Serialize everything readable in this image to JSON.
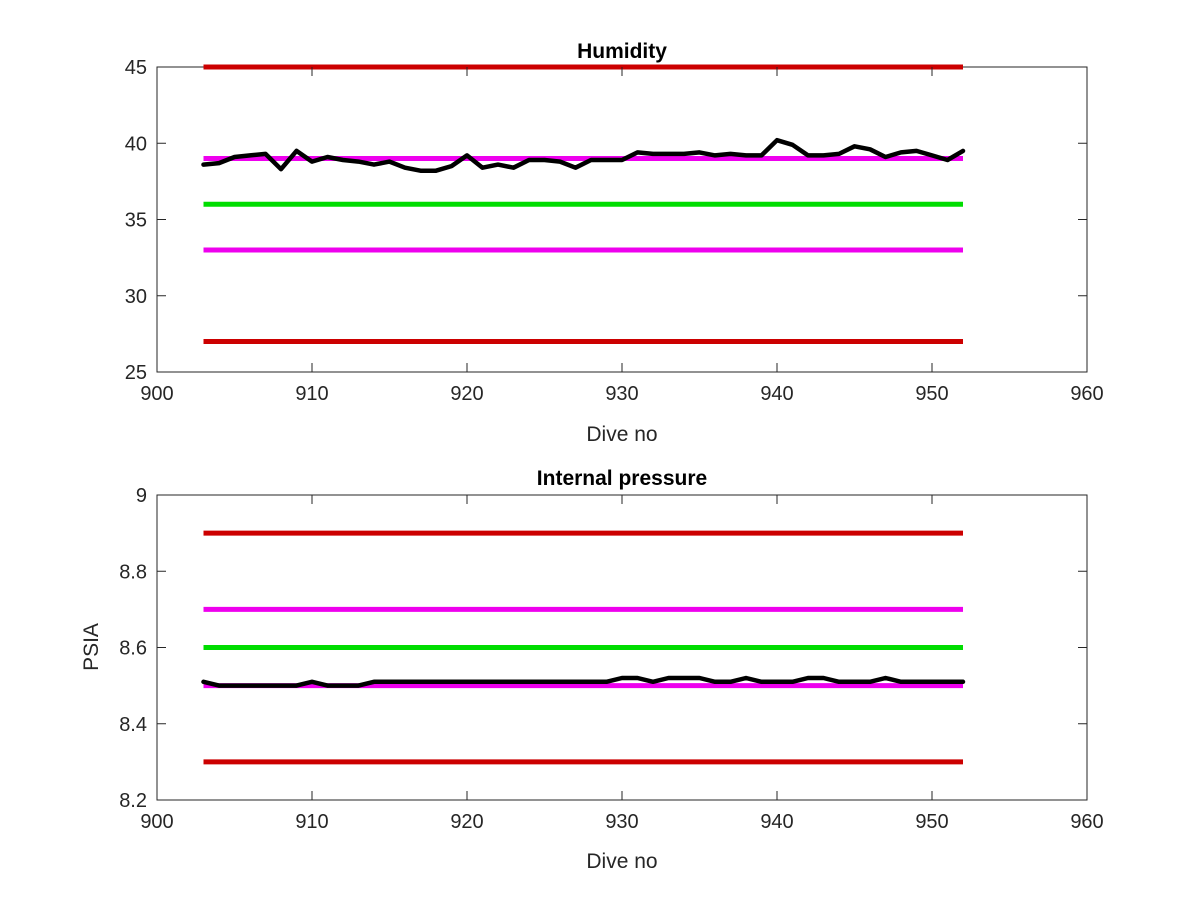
{
  "chart_data": [
    {
      "type": "line",
      "title": "Humidity",
      "xlabel": "Dive no",
      "ylabel": "",
      "xlim": [
        900,
        960
      ],
      "ylim": [
        25,
        45
      ],
      "xticks": [
        "900",
        "910",
        "920",
        "930",
        "940",
        "950",
        "960"
      ],
      "yticks": [
        "25",
        "30",
        "35",
        "40",
        "45"
      ],
      "grid": false,
      "reference_lines": [
        {
          "y": 45,
          "x_range": [
            903,
            952
          ],
          "color": "#cc0000"
        },
        {
          "y": 39,
          "x_range": [
            903,
            952
          ],
          "color": "#ee00ee"
        },
        {
          "y": 36,
          "x_range": [
            903,
            952
          ],
          "color": "#00dd00"
        },
        {
          "y": 33,
          "x_range": [
            903,
            952
          ],
          "color": "#ee00ee"
        },
        {
          "y": 27,
          "x_range": [
            903,
            952
          ],
          "color": "#cc0000"
        }
      ],
      "series": [
        {
          "color": "#000000",
          "x": [
            903,
            904,
            905,
            906,
            907,
            908,
            909,
            910,
            911,
            912,
            913,
            914,
            915,
            916,
            917,
            918,
            919,
            920,
            921,
            922,
            923,
            924,
            925,
            926,
            927,
            928,
            929,
            930,
            931,
            932,
            933,
            934,
            935,
            936,
            937,
            938,
            939,
            940,
            941,
            942,
            943,
            944,
            945,
            946,
            947,
            948,
            949,
            950,
            951,
            952
          ],
          "values": [
            38.6,
            38.7,
            39.1,
            39.2,
            39.3,
            38.3,
            39.5,
            38.8,
            39.1,
            38.9,
            38.8,
            38.6,
            38.8,
            38.4,
            38.2,
            38.2,
            38.5,
            39.2,
            38.4,
            38.6,
            38.4,
            38.9,
            38.9,
            38.8,
            38.4,
            38.9,
            38.9,
            38.9,
            39.4,
            39.3,
            39.3,
            39.3,
            39.4,
            39.2,
            39.3,
            39.2,
            39.2,
            40.2,
            39.9,
            39.2,
            39.2,
            39.3,
            39.8,
            39.6,
            39.1,
            39.4,
            39.5,
            39.2,
            38.9,
            39.5
          ]
        }
      ]
    },
    {
      "type": "line",
      "title": "Internal pressure",
      "xlabel": "Dive no",
      "ylabel": "PSIA",
      "xlim": [
        900,
        960
      ],
      "ylim": [
        8.2,
        9
      ],
      "xticks": [
        "900",
        "910",
        "920",
        "930",
        "940",
        "950",
        "960"
      ],
      "yticks": [
        "8.2",
        "8.4",
        "8.6",
        "8.8",
        "9"
      ],
      "grid": false,
      "reference_lines": [
        {
          "y": 8.9,
          "x_range": [
            903,
            952
          ],
          "color": "#cc0000"
        },
        {
          "y": 8.7,
          "x_range": [
            903,
            952
          ],
          "color": "#ee00ee"
        },
        {
          "y": 8.6,
          "x_range": [
            903,
            952
          ],
          "color": "#00dd00"
        },
        {
          "y": 8.5,
          "x_range": [
            903,
            952
          ],
          "color": "#ee00ee"
        },
        {
          "y": 8.3,
          "x_range": [
            903,
            952
          ],
          "color": "#cc0000"
        }
      ],
      "series": [
        {
          "color": "#000000",
          "x": [
            903,
            904,
            905,
            906,
            907,
            908,
            909,
            910,
            911,
            912,
            913,
            914,
            915,
            916,
            917,
            918,
            919,
            920,
            921,
            922,
            923,
            924,
            925,
            926,
            927,
            928,
            929,
            930,
            931,
            932,
            933,
            934,
            935,
            936,
            937,
            938,
            939,
            940,
            941,
            942,
            943,
            944,
            945,
            946,
            947,
            948,
            949,
            950,
            951,
            952
          ],
          "values": [
            8.51,
            8.5,
            8.5,
            8.5,
            8.5,
            8.5,
            8.5,
            8.51,
            8.5,
            8.5,
            8.5,
            8.51,
            8.51,
            8.51,
            8.51,
            8.51,
            8.51,
            8.51,
            8.51,
            8.51,
            8.51,
            8.51,
            8.51,
            8.51,
            8.51,
            8.51,
            8.51,
            8.52,
            8.52,
            8.51,
            8.52,
            8.52,
            8.52,
            8.51,
            8.51,
            8.52,
            8.51,
            8.51,
            8.51,
            8.52,
            8.52,
            8.51,
            8.51,
            8.51,
            8.52,
            8.51,
            8.51,
            8.51,
            8.51,
            8.51
          ]
        }
      ]
    }
  ]
}
